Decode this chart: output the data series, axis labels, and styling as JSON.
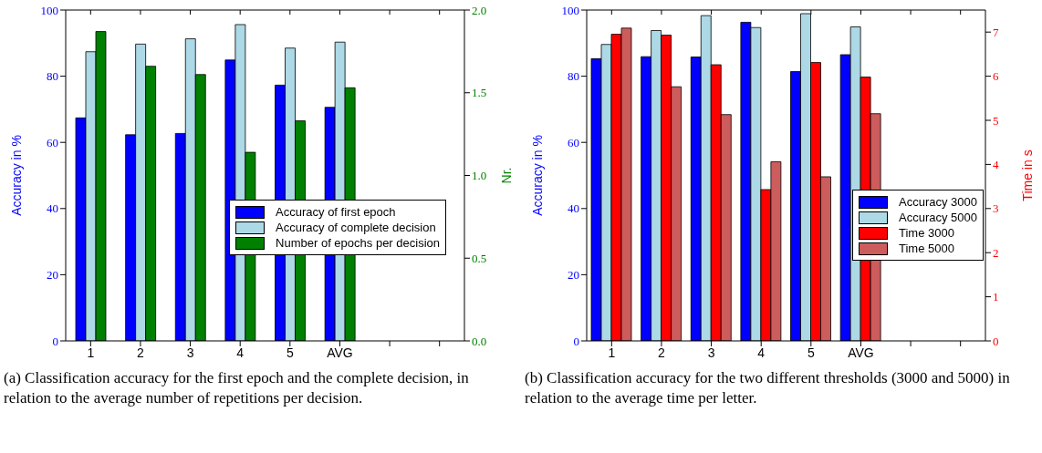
{
  "chart_data": [
    {
      "type": "bar",
      "categories": [
        "1",
        "2",
        "3",
        "4",
        "5",
        "AVG",
        null,
        null
      ],
      "ylabel": "Accuracy in %",
      "y2label": "Nr.",
      "ylim": [
        0,
        100
      ],
      "yticks": [
        0,
        20,
        40,
        60,
        80,
        100
      ],
      "y2lim": [
        0,
        2
      ],
      "y2ticks": [
        {
          "value": 0,
          "label": "0.0"
        },
        {
          "value": 0.5,
          "label": "0.5"
        },
        {
          "value": 1,
          "label": "1.0"
        },
        {
          "value": 1.5,
          "label": "1.5"
        },
        {
          "value": 2,
          "label": "2.0"
        }
      ],
      "legend": "bottom right",
      "series": [
        {
          "name": "Accuracy of first epoch",
          "color": "#0000ff",
          "values": [
            67.4,
            62.3,
            62.7,
            84.9,
            77.3,
            70.6,
            null,
            null
          ]
        },
        {
          "name": "Accuracy of complete decision",
          "color": "#add8e6",
          "values": [
            87.4,
            89.7,
            91.3,
            95.6,
            88.5,
            90.3,
            null,
            null
          ]
        },
        {
          "name": "Number of epochs per decision",
          "color": "#008000",
          "axis": "y2",
          "values": [
            1.87,
            1.66,
            1.61,
            1.14,
            1.33,
            1.53,
            null,
            null
          ]
        }
      ],
      "annotations": [
        "(a) Classification accuracy for the first epoch and the complete decision, in relation to the average number of repetitions per decision."
      ]
    },
    {
      "type": "bar",
      "categories": [
        "1",
        "2",
        "3",
        "4",
        "5",
        "AVG",
        null,
        null
      ],
      "ylabel": "Accuracy in %",
      "y2label": "Time in s",
      "ylim": [
        0,
        100
      ],
      "yticks": [
        0,
        20,
        40,
        60,
        80,
        100
      ],
      "y2lim": [
        0,
        7.5
      ],
      "y2ticks": [
        0,
        1,
        2,
        3,
        4,
        5,
        6,
        7
      ],
      "legend": "bottom right",
      "series": [
        {
          "name": "Accuracy 3000",
          "color": "#0000ff",
          "values": [
            85.3,
            85.9,
            85.8,
            96.3,
            81.4,
            86.5,
            null,
            null
          ]
        },
        {
          "name": "Accuracy 5000",
          "color": "#add8e6",
          "values": [
            89.6,
            93.8,
            98.3,
            94.7,
            98.9,
            94.9,
            null,
            null
          ]
        },
        {
          "name": "Time 3000",
          "color": "#ff0000",
          "axis": "y2",
          "values": [
            6.95,
            6.93,
            6.26,
            3.43,
            6.31,
            5.98,
            null,
            null
          ]
        },
        {
          "name": "Time 5000",
          "color": "#cd5c5c",
          "axis": "y2",
          "values": [
            7.09,
            5.76,
            5.13,
            4.06,
            3.72,
            5.15,
            null,
            null
          ]
        }
      ],
      "annotations": [
        "(b) Classification accuracy for the two different thresholds (3000 and 5000) in relation to the average time per letter."
      ]
    }
  ]
}
